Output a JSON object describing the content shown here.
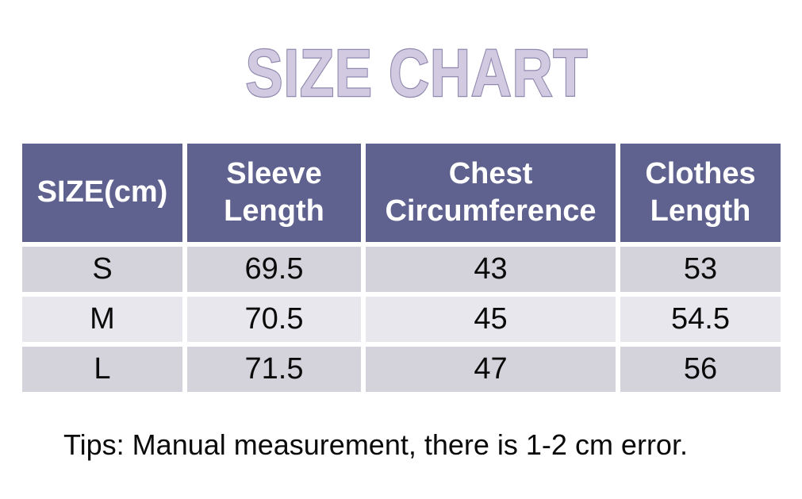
{
  "page": {
    "title": "SIZE CHART",
    "tips": "Tips: Manual measurement, there is 1-2 cm error."
  },
  "colors": {
    "header_bg": "#5f618f",
    "header_text": "#ffffff",
    "row_shaded": "#d4d3db",
    "row_light": "#e8e7ed",
    "title_fill": "#d1cae1",
    "title_outline": "#8f87ad",
    "body_text": "#0a0a0a"
  },
  "table": {
    "headers": [
      "SIZE(cm)",
      "Sleeve Length",
      "Chest Circumference",
      "Clothes Length"
    ],
    "rows": [
      [
        "S",
        "69.5",
        "43",
        "53"
      ],
      [
        "M",
        "70.5",
        "45",
        "54.5"
      ],
      [
        "L",
        "71.5",
        "47",
        "56"
      ]
    ]
  },
  "chart_data": {
    "type": "table",
    "title": "SIZE CHART",
    "unit": "cm",
    "columns": [
      "SIZE(cm)",
      "Sleeve Length",
      "Chest Circumference",
      "Clothes Length"
    ],
    "rows": [
      {
        "size": "S",
        "sleeve_length": 69.5,
        "chest_circumference": 43,
        "clothes_length": 53
      },
      {
        "size": "M",
        "sleeve_length": 70.5,
        "chest_circumference": 45,
        "clothes_length": 54.5
      },
      {
        "size": "L",
        "sleeve_length": 71.5,
        "chest_circumference": 47,
        "clothes_length": 56
      }
    ],
    "note": "Tips: Manual measurement, there is 1-2 cm error.",
    "layout": "header row dark slate-purple with white bold text; data rows alternating light gray (S, L) and lighter gray (M); white gaps between all cells; outlined lavender title above; note below"
  }
}
